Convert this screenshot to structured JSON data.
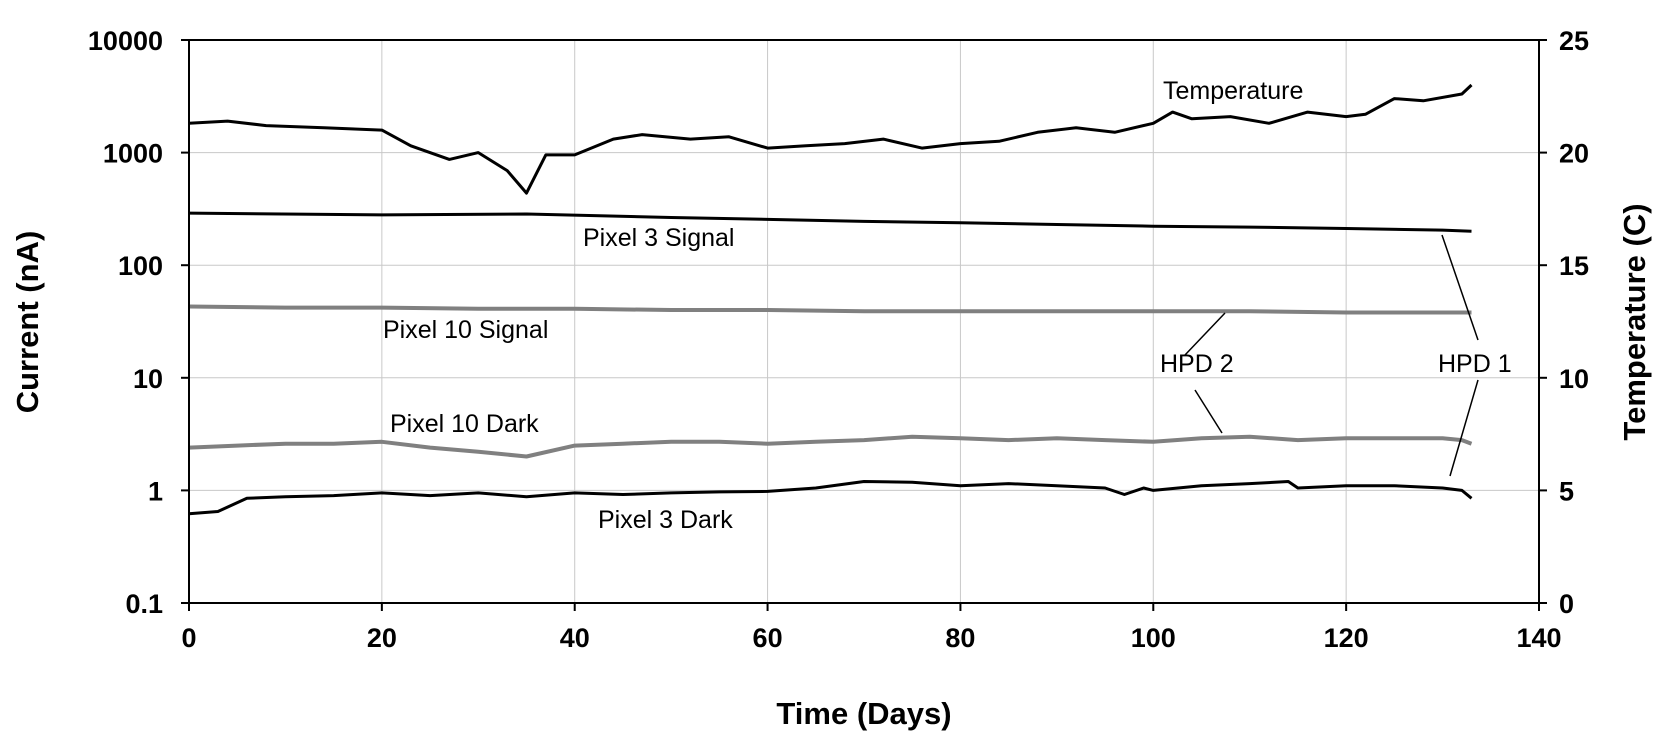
{
  "chart_data": {
    "type": "line",
    "title": "",
    "xlabel": "Time (Days)",
    "ylabel": "Current (nA)",
    "y2label": "Temperature (C)",
    "xlim": [
      0,
      140
    ],
    "ylim": [
      0.1,
      10000
    ],
    "y_scale": "log",
    "y2lim": [
      0,
      25
    ],
    "grid": true,
    "x_ticks": [
      "0",
      "20",
      "40",
      "60",
      "80",
      "100",
      "120",
      "140"
    ],
    "y_ticks": [
      "0.1",
      "1",
      "10",
      "100",
      "1000",
      "10000"
    ],
    "y2_ticks": [
      "0",
      "5",
      "10",
      "15",
      "20",
      "25"
    ],
    "series": [
      {
        "name": "Temperature",
        "axis": "right",
        "color": "#000000",
        "x": [
          0,
          4,
          8,
          14,
          20,
          23,
          27,
          30,
          33,
          35,
          37,
          40,
          44,
          47,
          52,
          56,
          60,
          64,
          68,
          72,
          76,
          80,
          84,
          88,
          92,
          96,
          100,
          102,
          104,
          108,
          112,
          116,
          120,
          122,
          125,
          128,
          132,
          133
        ],
        "values": [
          21.3,
          21.4,
          21.2,
          21.1,
          21.0,
          20.3,
          19.7,
          20.0,
          19.2,
          18.2,
          19.9,
          19.9,
          20.6,
          20.8,
          20.6,
          20.7,
          20.2,
          20.3,
          20.4,
          20.6,
          20.2,
          20.4,
          20.5,
          20.9,
          21.1,
          20.9,
          21.3,
          21.8,
          21.5,
          21.6,
          21.3,
          21.8,
          21.6,
          21.7,
          22.4,
          22.3,
          22.6,
          23.0
        ]
      },
      {
        "name": "Pixel 3 Signal",
        "axis": "left",
        "color": "#000000",
        "x": [
          0,
          20,
          35,
          50,
          60,
          70,
          80,
          90,
          100,
          110,
          120,
          130,
          133
        ],
        "values": [
          290,
          280,
          285,
          265,
          255,
          245,
          238,
          230,
          222,
          218,
          212,
          205,
          200
        ]
      },
      {
        "name": "Pixel 10 Signal",
        "axis": "left",
        "color": "#808080",
        "x": [
          0,
          10,
          20,
          30,
          40,
          50,
          60,
          70,
          80,
          90,
          100,
          110,
          120,
          130,
          133
        ],
        "values": [
          43,
          42,
          42,
          41,
          41,
          40,
          40,
          39,
          39,
          39,
          39,
          39,
          38,
          38,
          38
        ]
      },
      {
        "name": "Pixel 10 Dark",
        "axis": "left",
        "color": "#808080",
        "x": [
          0,
          5,
          10,
          15,
          20,
          25,
          30,
          35,
          40,
          45,
          50,
          55,
          60,
          65,
          70,
          75,
          80,
          85,
          90,
          95,
          100,
          105,
          110,
          115,
          120,
          125,
          130,
          132,
          133
        ],
        "values": [
          2.4,
          2.5,
          2.6,
          2.6,
          2.7,
          2.4,
          2.2,
          2.0,
          2.5,
          2.6,
          2.7,
          2.7,
          2.6,
          2.7,
          2.8,
          3.0,
          2.9,
          2.8,
          2.9,
          2.8,
          2.7,
          2.9,
          3.0,
          2.8,
          2.9,
          2.9,
          2.9,
          2.8,
          2.6
        ]
      },
      {
        "name": "Pixel 3 Dark",
        "axis": "left",
        "color": "#000000",
        "x": [
          0,
          3,
          6,
          10,
          15,
          20,
          25,
          30,
          35,
          40,
          45,
          50,
          55,
          60,
          65,
          70,
          75,
          80,
          85,
          90,
          95,
          97,
          99,
          100,
          105,
          110,
          114,
          115,
          120,
          125,
          130,
          132,
          133
        ],
        "values": [
          0.62,
          0.65,
          0.85,
          0.88,
          0.9,
          0.95,
          0.9,
          0.95,
          0.88,
          0.95,
          0.92,
          0.95,
          0.97,
          0.98,
          1.05,
          1.2,
          1.18,
          1.1,
          1.15,
          1.1,
          1.05,
          0.92,
          1.05,
          1.0,
          1.1,
          1.15,
          1.2,
          1.05,
          1.1,
          1.1,
          1.05,
          1.0,
          0.85
        ]
      }
    ],
    "annotations": [
      {
        "text": "Temperature"
      },
      {
        "text": "Pixel 3 Signal"
      },
      {
        "text": "Pixel 10 Signal"
      },
      {
        "text": "HPD 2"
      },
      {
        "text": "HPD 1"
      },
      {
        "text": "Pixel 10 Dark"
      },
      {
        "text": "Pixel 3 Dark"
      }
    ]
  }
}
